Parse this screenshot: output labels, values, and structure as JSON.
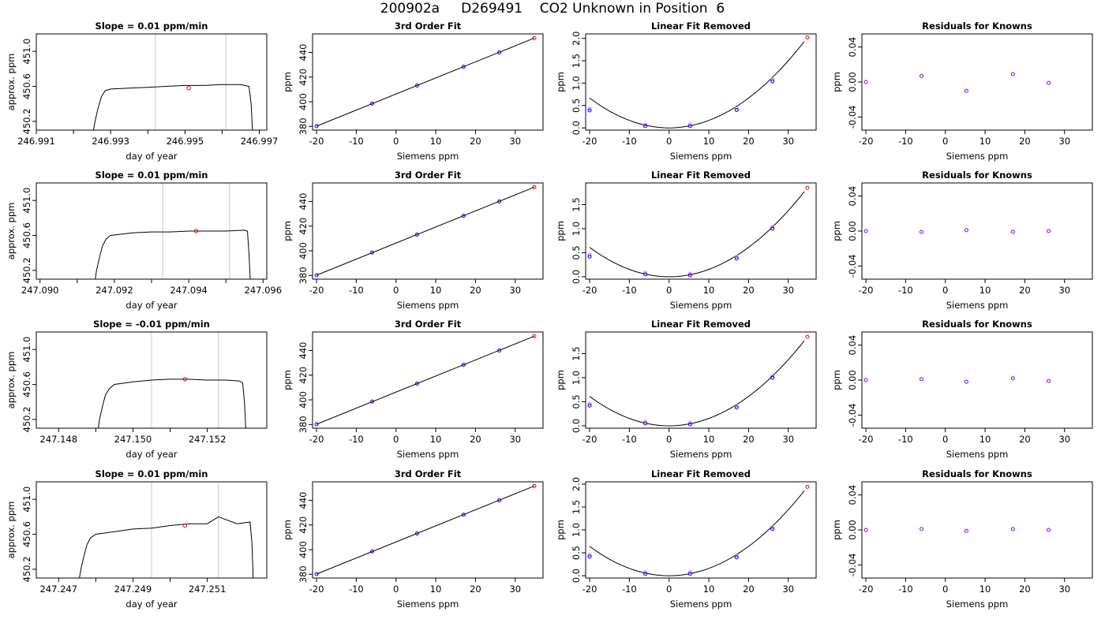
{
  "page": {
    "title": "200902a     D269491    CO2 Unknown in Position  6",
    "colors": {
      "frame": "#000000",
      "trace": "#000000",
      "marker_line": "#c8c8c8",
      "unknown": "#ff0000",
      "known": "#0000ff",
      "residual": "#8000ff",
      "fit_pink": "#ff66ff"
    }
  },
  "chart_data": [
    {
      "type": "line",
      "row": 0,
      "title": "Slope =  0.01  ppm/min",
      "xlabel": "day of year",
      "ylabel": "approx. ppm",
      "xlim": [
        246.991,
        246.9972
      ],
      "ylim": [
        450.1,
        451.2
      ],
      "x_ticks": [
        "246.991",
        "246.993",
        "246.995",
        "246.997"
      ],
      "y_ticks": [
        "450.2",
        "450.6",
        "451.0"
      ],
      "markers_x": [
        246.9942,
        246.9961
      ],
      "point": [
        246.9951,
        450.58
      ],
      "trace": [
        [
          246.99252,
          450.05
        ],
        [
          246.99258,
          450.2
        ],
        [
          246.99266,
          450.35
        ],
        [
          246.99275,
          450.48
        ],
        [
          246.99285,
          450.55
        ],
        [
          246.993,
          450.57
        ],
        [
          246.9935,
          450.58
        ],
        [
          246.994,
          450.59
        ],
        [
          246.9945,
          450.6
        ],
        [
          246.995,
          450.61
        ],
        [
          246.9955,
          450.61
        ],
        [
          246.996,
          450.62
        ],
        [
          246.9965,
          450.62
        ],
        [
          246.99672,
          450.6
        ],
        [
          246.99678,
          450.4
        ],
        [
          246.99682,
          450.05
        ]
      ]
    },
    {
      "type": "scatter",
      "row": 0,
      "title": "3rd Order Fit",
      "xlabel": "Siemens ppm",
      "ylabel": "ppm",
      "xlim": [
        -21,
        37
      ],
      "ylim": [
        377,
        455
      ],
      "x_ticks": [
        "-20",
        "-10",
        "0",
        "10",
        "20",
        "30"
      ],
      "y_ticks": [
        "380",
        "400",
        "420",
        "440"
      ],
      "knowns": [
        [
          -20,
          380.2
        ],
        [
          -6,
          398.6
        ],
        [
          5.3,
          413.1
        ],
        [
          17,
          428.3
        ],
        [
          26,
          440
        ]
      ],
      "unknown": [
        34.8,
        451.6
      ]
    },
    {
      "type": "scatter",
      "row": 0,
      "title": "Linear Fit Removed",
      "xlabel": "Siemens ppm",
      "ylabel": "ppm",
      "xlim": [
        -21,
        37
      ],
      "ylim": [
        -0.05,
        2.1
      ],
      "x_ticks": [
        "-20",
        "-10",
        "0",
        "10",
        "20",
        "30"
      ],
      "y_ticks": [
        "0.0",
        "0.5",
        "1.0",
        "1.5",
        "2.0"
      ],
      "knowns": [
        [
          -20,
          0.39
        ],
        [
          -6,
          0.04
        ],
        [
          5.3,
          0.04
        ],
        [
          17,
          0.4
        ],
        [
          26,
          1.04
        ]
      ],
      "unknown": [
        34.8,
        2.02
      ]
    },
    {
      "type": "scatter",
      "row": 0,
      "title": "Residuals for Knowns",
      "xlabel": "Siemens ppm",
      "ylabel": "ppm",
      "xlim": [
        -21,
        37
      ],
      "ylim": [
        -0.055,
        0.055
      ],
      "x_ticks": [
        "-20",
        "-10",
        "0",
        "10",
        "20",
        "30"
      ],
      "y_ticks": [
        "-0.04",
        "0.00",
        "0.04"
      ],
      "residuals": [
        [
          -20,
          0
        ],
        [
          -6,
          0.007
        ],
        [
          5.3,
          -0.01
        ],
        [
          17,
          0.009
        ],
        [
          26,
          -0.001
        ]
      ]
    },
    {
      "type": "line",
      "row": 1,
      "title": "Slope =  0.01  ppm/min",
      "xlabel": "day of year",
      "ylabel": "approx. ppm",
      "xlim": [
        247.0899,
        247.0961
      ],
      "ylim": [
        450.1,
        451.2
      ],
      "x_ticks": [
        "247.090",
        "247.092",
        "247.094",
        "247.096"
      ],
      "y_ticks": [
        "450.2",
        "450.6",
        "451.0"
      ],
      "markers_x": [
        247.0933,
        247.0951
      ],
      "point": [
        247.0942,
        450.65
      ],
      "trace": [
        [
          247.09147,
          450.05
        ],
        [
          247.09152,
          450.2
        ],
        [
          247.0916,
          450.35
        ],
        [
          247.09168,
          450.48
        ],
        [
          247.09178,
          450.56
        ],
        [
          247.0919,
          450.6
        ],
        [
          247.0925,
          450.63
        ],
        [
          247.093,
          450.64
        ],
        [
          247.0935,
          450.64
        ],
        [
          247.094,
          450.65
        ],
        [
          247.0945,
          450.65
        ],
        [
          247.095,
          450.65
        ],
        [
          247.0955,
          450.66
        ],
        [
          247.09558,
          450.65
        ],
        [
          247.09562,
          450.4
        ],
        [
          247.09566,
          450.05
        ]
      ]
    },
    {
      "type": "scatter",
      "row": 1,
      "title": "3rd Order Fit",
      "xlabel": "Siemens ppm",
      "ylabel": "ppm",
      "xlim": [
        -21,
        37
      ],
      "ylim": [
        377,
        455
      ],
      "x_ticks": [
        "-20",
        "-10",
        "0",
        "10",
        "20",
        "30"
      ],
      "y_ticks": [
        "380",
        "400",
        "420",
        "440"
      ],
      "knowns": [
        [
          -20,
          380.2
        ],
        [
          -6,
          398.6
        ],
        [
          5.3,
          413.1
        ],
        [
          17,
          428.3
        ],
        [
          26,
          440
        ]
      ],
      "unknown": [
        34.8,
        451.6
      ]
    },
    {
      "type": "scatter",
      "row": 1,
      "title": "Linear Fit Removed",
      "xlabel": "Siemens ppm",
      "ylabel": "ppm",
      "xlim": [
        -21,
        37
      ],
      "ylim": [
        -0.05,
        1.95
      ],
      "x_ticks": [
        "-20",
        "-10",
        "0",
        "10",
        "20",
        "30"
      ],
      "y_ticks": [
        "0.0",
        "0.5",
        "1.0",
        "1.5"
      ],
      "knowns": [
        [
          -20,
          0.42
        ],
        [
          -6,
          0.05
        ],
        [
          5.3,
          0.03
        ],
        [
          17,
          0.38
        ],
        [
          26,
          1.0
        ]
      ],
      "unknown": [
        34.8,
        1.85
      ]
    },
    {
      "type": "scatter",
      "row": 1,
      "title": "Residuals for Knowns",
      "xlabel": "Siemens ppm",
      "ylabel": "ppm",
      "xlim": [
        -21,
        37
      ],
      "ylim": [
        -0.055,
        0.055
      ],
      "x_ticks": [
        "-20",
        "-10",
        "0",
        "10",
        "20",
        "30"
      ],
      "y_ticks": [
        "-0.04",
        "0.00",
        "0.04"
      ],
      "residuals": [
        [
          -20,
          0
        ],
        [
          -6,
          -0.001
        ],
        [
          5.3,
          0.001
        ],
        [
          17,
          -0.001
        ],
        [
          26,
          0
        ]
      ]
    },
    {
      "type": "line",
      "row": 2,
      "title": "Slope =  -0.01  ppm/min",
      "xlabel": "day of year",
      "ylabel": "approx. ppm",
      "xlim": [
        247.1474,
        247.1536
      ],
      "ylim": [
        450.1,
        451.2
      ],
      "x_ticks": [
        "247.148",
        "247.150",
        "247.152"
      ],
      "y_ticks": [
        "450.2",
        "450.6",
        "451.0"
      ],
      "markers_x": [
        247.1505,
        247.1523
      ],
      "point": [
        247.1514,
        450.66
      ],
      "trace": [
        [
          247.14905,
          450.05
        ],
        [
          247.1491,
          450.2
        ],
        [
          247.14918,
          450.35
        ],
        [
          247.14926,
          450.48
        ],
        [
          247.14936,
          450.55
        ],
        [
          247.1495,
          450.6
        ],
        [
          247.15,
          450.63
        ],
        [
          247.1505,
          450.65
        ],
        [
          247.151,
          450.66
        ],
        [
          247.1515,
          450.66
        ],
        [
          247.152,
          450.65
        ],
        [
          247.1525,
          450.65
        ],
        [
          247.15285,
          450.64
        ],
        [
          247.15295,
          450.62
        ],
        [
          247.153,
          450.4
        ],
        [
          247.15304,
          450.05
        ]
      ]
    },
    {
      "type": "scatter",
      "row": 2,
      "title": "3rd Order Fit",
      "xlabel": "Siemens ppm",
      "ylabel": "ppm",
      "xlim": [
        -21,
        37
      ],
      "ylim": [
        377,
        455
      ],
      "x_ticks": [
        "-20",
        "-10",
        "0",
        "10",
        "20",
        "30"
      ],
      "y_ticks": [
        "380",
        "400",
        "420",
        "440"
      ],
      "knowns": [
        [
          -20,
          380.2
        ],
        [
          -6,
          398.6
        ],
        [
          5.3,
          413.1
        ],
        [
          17,
          428.3
        ],
        [
          26,
          440
        ]
      ],
      "unknown": [
        34.8,
        451.6
      ]
    },
    {
      "type": "scatter",
      "row": 2,
      "title": "Linear Fit Removed",
      "xlabel": "Siemens ppm",
      "ylabel": "ppm",
      "xlim": [
        -21,
        37
      ],
      "ylim": [
        -0.05,
        1.95
      ],
      "x_ticks": [
        "-20",
        "-10",
        "0",
        "10",
        "20",
        "30"
      ],
      "y_ticks": [
        "0.0",
        "0.5",
        "1.0",
        "1.5"
      ],
      "knowns": [
        [
          -20,
          0.42
        ],
        [
          -6,
          0.05
        ],
        [
          5.3,
          0.03
        ],
        [
          17,
          0.38
        ],
        [
          26,
          1.0
        ]
      ],
      "unknown": [
        34.8,
        1.85
      ]
    },
    {
      "type": "scatter",
      "row": 2,
      "title": "Residuals for Knowns",
      "xlabel": "Siemens ppm",
      "ylabel": "ppm",
      "xlim": [
        -21,
        37
      ],
      "ylim": [
        -0.055,
        0.055
      ],
      "x_ticks": [
        "-20",
        "-10",
        "0",
        "10",
        "20",
        "30"
      ],
      "y_ticks": [
        "-0.04",
        "0.00",
        "0.04"
      ],
      "residuals": [
        [
          -20,
          0
        ],
        [
          -6,
          0.001
        ],
        [
          5.3,
          -0.002
        ],
        [
          17,
          0.002
        ],
        [
          26,
          -0.001
        ]
      ]
    },
    {
      "type": "line",
      "row": 3,
      "title": "Slope =  0.01  ppm/min",
      "xlabel": "day of year",
      "ylabel": "approx. ppm",
      "xlim": [
        247.2464,
        247.2526
      ],
      "ylim": [
        450.1,
        451.2
      ],
      "x_ticks": [
        "247.247",
        "247.249",
        "247.251"
      ],
      "y_ticks": [
        "450.2",
        "450.6",
        "451.0"
      ],
      "markers_x": [
        247.2495,
        247.2513
      ],
      "point": [
        247.2504,
        450.7
      ],
      "trace": [
        [
          247.24754,
          450.05
        ],
        [
          247.2476,
          450.2
        ],
        [
          247.24768,
          450.35
        ],
        [
          247.24776,
          450.48
        ],
        [
          247.24786,
          450.56
        ],
        [
          247.248,
          450.6
        ],
        [
          247.2485,
          450.63
        ],
        [
          247.249,
          450.66
        ],
        [
          247.2495,
          450.67
        ],
        [
          247.25,
          450.7
        ],
        [
          247.2505,
          450.72
        ],
        [
          247.251,
          450.72
        ],
        [
          247.2513,
          450.8
        ],
        [
          247.2518,
          450.72
        ],
        [
          247.25215,
          450.74
        ],
        [
          247.2522,
          450.5
        ],
        [
          247.25224,
          450.05
        ]
      ]
    },
    {
      "type": "scatter",
      "row": 3,
      "title": "3rd Order Fit",
      "xlabel": "Siemens ppm",
      "ylabel": "ppm",
      "xlim": [
        -21,
        37
      ],
      "ylim": [
        377,
        455
      ],
      "x_ticks": [
        "-20",
        "-10",
        "0",
        "10",
        "20",
        "30"
      ],
      "y_ticks": [
        "380",
        "400",
        "420",
        "440"
      ],
      "knowns": [
        [
          -20,
          380.2
        ],
        [
          -6,
          398.6
        ],
        [
          5.3,
          413.1
        ],
        [
          17,
          428.3
        ],
        [
          26,
          440
        ]
      ],
      "unknown": [
        34.8,
        451.6
      ]
    },
    {
      "type": "scatter",
      "row": 3,
      "title": "Linear Fit Removed",
      "xlabel": "Siemens ppm",
      "ylabel": "ppm",
      "xlim": [
        -21,
        37
      ],
      "ylim": [
        -0.05,
        2.05
      ],
      "x_ticks": [
        "-20",
        "-10",
        "0",
        "10",
        "20",
        "30"
      ],
      "y_ticks": [
        "0.0",
        "0.5",
        "1.0",
        "1.5",
        "2.0"
      ],
      "knowns": [
        [
          -20,
          0.42
        ],
        [
          -6,
          0.04
        ],
        [
          5.3,
          0.04
        ],
        [
          17,
          0.4
        ],
        [
          26,
          1.02
        ]
      ],
      "unknown": [
        34.8,
        1.94
      ]
    },
    {
      "type": "scatter",
      "row": 3,
      "title": "Residuals for Knowns",
      "xlabel": "Siemens ppm",
      "ylabel": "ppm",
      "xlim": [
        -21,
        37
      ],
      "ylim": [
        -0.055,
        0.055
      ],
      "x_ticks": [
        "-20",
        "-10",
        "0",
        "10",
        "20",
        "30"
      ],
      "y_ticks": [
        "-0.04",
        "0.00",
        "0.04"
      ],
      "residuals": [
        [
          -20,
          0
        ],
        [
          -6,
          0.001
        ],
        [
          5.3,
          -0.001
        ],
        [
          17,
          0.001
        ],
        [
          26,
          0
        ]
      ]
    }
  ]
}
